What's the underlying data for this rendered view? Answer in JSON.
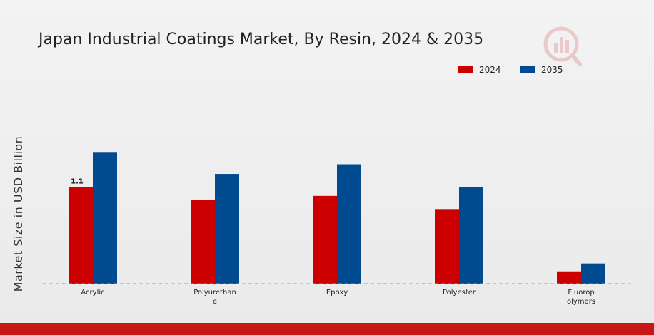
{
  "chart_data": {
    "type": "bar",
    "title": "Japan Industrial Coatings Market, By Resin, 2024 & 2035",
    "ylabel": "Market Size in USD Billion",
    "xlabel": "",
    "categories": [
      "Acrylic",
      "Polyurethane",
      "Epoxy",
      "Polyester",
      "Fluoropolymers"
    ],
    "category_lines": [
      [
        "Acrylic"
      ],
      [
        "Polyurethan",
        "e"
      ],
      [
        "Epoxy"
      ],
      [
        "Polyester"
      ],
      [
        "Fluorop",
        "olymers"
      ]
    ],
    "series": [
      {
        "name": "2024",
        "color": "#cc0000",
        "values": [
          1.1,
          0.95,
          1.0,
          0.85,
          0.14
        ]
      },
      {
        "name": "2035",
        "color": "#004a8f",
        "values": [
          1.5,
          1.25,
          1.36,
          1.1,
          0.23
        ]
      }
    ],
    "data_labels": [
      {
        "series": 0,
        "index": 0,
        "text": "1.1"
      }
    ],
    "ylim": [
      0,
      2.03
    ],
    "grid": false,
    "legend": "top-right",
    "baseline_style": "dashed"
  }
}
